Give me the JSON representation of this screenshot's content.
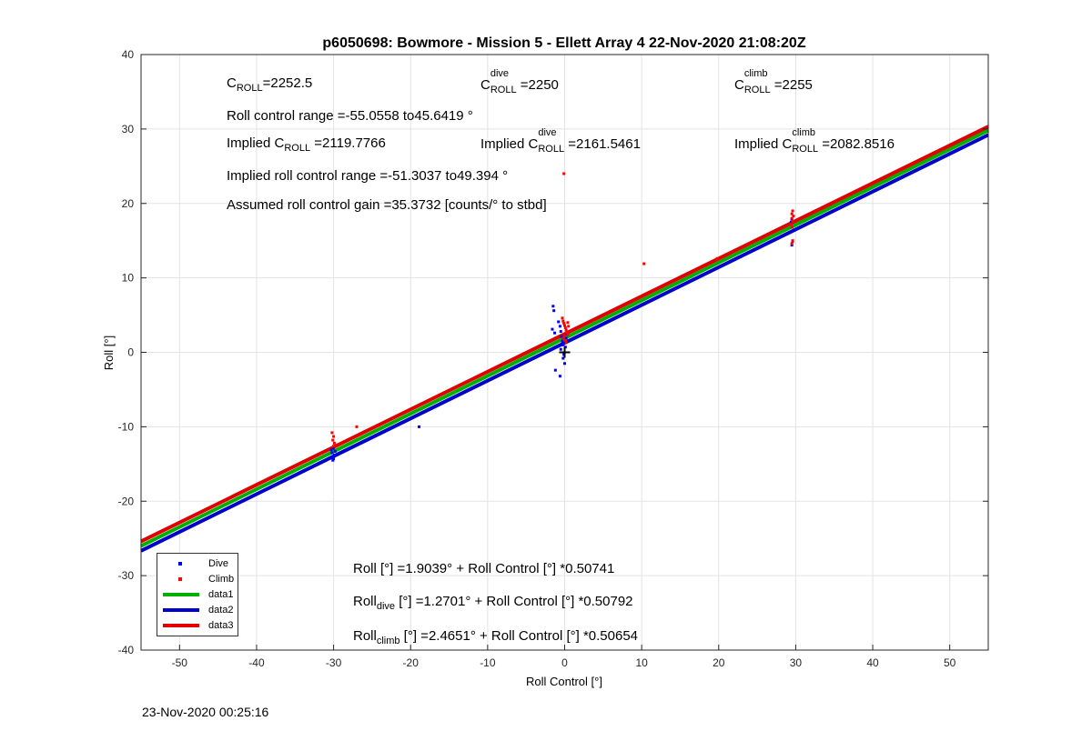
{
  "chart_data": {
    "type": "scatter",
    "title": "p6050698: Bowmore - Mission 5 - Ellett Array 4 22-Nov-2020 21:08:20Z",
    "xlabel": "Roll Control [°]",
    "ylabel": "Roll [°]",
    "xlim": [
      -55,
      55
    ],
    "ylim": [
      -40,
      40
    ],
    "xticks": [
      -50,
      -40,
      -30,
      -20,
      -10,
      0,
      10,
      20,
      30,
      40,
      50
    ],
    "yticks": [
      -40,
      -30,
      -20,
      -10,
      0,
      10,
      20,
      30,
      40
    ],
    "grid": true,
    "legend_position": "bottom-left",
    "series": [
      {
        "name": "Dive",
        "kind": "points",
        "color": "#0000ff",
        "points": [
          [
            -30.2,
            -13.5
          ],
          [
            -30.1,
            -14.0
          ],
          [
            -30.0,
            -14.3
          ],
          [
            -29.9,
            -13.8
          ],
          [
            -30.3,
            -13.1
          ],
          [
            -30.0,
            -12.9
          ],
          [
            -30.1,
            -14.5
          ],
          [
            -29.8,
            -13.3
          ],
          [
            -18.9,
            -10.0
          ],
          [
            -1.5,
            6.2
          ],
          [
            -1.4,
            5.6
          ],
          [
            -1.6,
            3.1
          ],
          [
            -1.3,
            2.6
          ],
          [
            -0.8,
            4.1
          ],
          [
            -0.6,
            3.5
          ],
          [
            -0.5,
            2.8
          ],
          [
            -0.4,
            2.1
          ],
          [
            -0.3,
            1.5
          ],
          [
            -0.2,
            1.0
          ],
          [
            -0.5,
            0.4
          ],
          [
            -0.1,
            -0.3
          ],
          [
            -0.2,
            -0.8
          ],
          [
            0.0,
            -1.5
          ],
          [
            -0.6,
            -3.2
          ],
          [
            -1.2,
            -2.4
          ],
          [
            0.1,
            0.7
          ],
          [
            0.2,
            1.9
          ],
          [
            0.3,
            2.4
          ],
          [
            29.5,
            14.4
          ],
          [
            29.6,
            14.9
          ],
          [
            29.4,
            17.5
          ],
          [
            29.5,
            17.9
          ]
        ]
      },
      {
        "name": "Climb",
        "kind": "points",
        "color": "#ff0000",
        "points": [
          [
            -30.2,
            -10.8
          ],
          [
            -30.0,
            -11.3
          ],
          [
            -30.1,
            -11.8
          ],
          [
            -29.9,
            -12.2
          ],
          [
            -30.0,
            -12.6
          ],
          [
            -27.0,
            -10.0
          ],
          [
            -0.1,
            24.0
          ],
          [
            -0.3,
            4.6
          ],
          [
            -0.2,
            4.2
          ],
          [
            -0.1,
            3.9
          ],
          [
            0.0,
            3.6
          ],
          [
            0.1,
            3.3
          ],
          [
            0.2,
            3.0
          ],
          [
            0.3,
            2.7
          ],
          [
            0.4,
            2.4
          ],
          [
            0.0,
            2.2
          ],
          [
            -0.2,
            1.9
          ],
          [
            0.1,
            1.6
          ],
          [
            0.2,
            1.3
          ],
          [
            0.4,
            4.0
          ],
          [
            0.5,
            3.5
          ],
          [
            10.3,
            11.9
          ],
          [
            19.8,
            12.6
          ],
          [
            29.6,
            19.0
          ],
          [
            29.5,
            18.6
          ],
          [
            29.7,
            18.3
          ],
          [
            29.5,
            18.0
          ],
          [
            29.6,
            17.6
          ],
          [
            29.4,
            17.2
          ],
          [
            29.5,
            16.8
          ],
          [
            29.6,
            15.0
          ],
          [
            29.5,
            14.6
          ]
        ]
      },
      {
        "name": "data1",
        "kind": "line",
        "color": "#00b000",
        "intercept": 1.9039,
        "slope": 0.50741
      },
      {
        "name": "data2",
        "kind": "line",
        "color": "#0000cc",
        "intercept": 1.2701,
        "slope": 0.50792
      },
      {
        "name": "data3",
        "kind": "line",
        "color": "#e00000",
        "intercept": 2.4651,
        "slope": 0.50654
      }
    ],
    "marker": {
      "symbol": "+",
      "x": 0,
      "y": 0,
      "color": "#000000"
    }
  },
  "annotations": {
    "c_roll_label": "C",
    "c_roll_sub": "ROLL",
    "c_roll_value": "=2252.5",
    "c_dive_label": "C",
    "c_dive_sup": "dive",
    "c_dive_sub": "ROLL",
    "c_dive_value": "=2250",
    "c_climb_label": "C",
    "c_climb_sup": "climb",
    "c_climb_sub": "ROLL",
    "c_climb_value": "=2255",
    "roll_control_range": "Roll control range =-55.0558 to45.6419 °",
    "implied_c_roll_prefix": "Implied C",
    "implied_c_roll_sub": "ROLL",
    "implied_c_roll_value": "=2119.7766",
    "implied_c_dive_prefix": "Implied C",
    "implied_c_dive_sup": "dive",
    "implied_c_dive_sub": "ROLL",
    "implied_c_dive_value": "=2161.5461",
    "implied_c_climb_prefix": "Implied C",
    "implied_c_climb_sup": "climb",
    "implied_c_climb_sub": "ROLL",
    "implied_c_climb_value": "=2082.8516",
    "implied_range": "Implied roll control range =-51.3037 to49.394 °",
    "gain": "Assumed roll control gain =35.3732 [counts/° to stbd]",
    "fit_all": "Roll [°] =1.9039° + Roll Control [°] *0.50741",
    "fit_dive_prefix": "Roll",
    "fit_dive_sub": "dive",
    "fit_dive_rest": " [°] =1.2701° + Roll Control [°] *0.50792",
    "fit_climb_prefix": "Roll",
    "fit_climb_sub": "climb",
    "fit_climb_rest": " [°] =2.4651° + Roll Control [°] *0.50654"
  },
  "legend": {
    "dive": "Dive",
    "climb": "Climb",
    "data1": "data1",
    "data2": "data2",
    "data3": "data3"
  },
  "footer": {
    "timestamp": "23-Nov-2020 00:25:16"
  }
}
